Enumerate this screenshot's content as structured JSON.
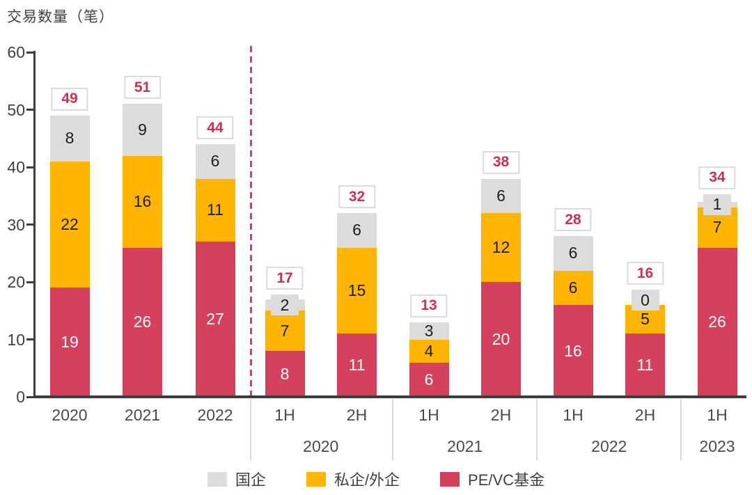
{
  "title": "交易数量（笔）",
  "colors": {
    "axis": "#3d3d3d",
    "tick_text": "#404040",
    "category_text": "#4a4a4a",
    "separator": "#d9d9d9",
    "dashed_divider": "#d5415d",
    "total_text": "#ce2f51",
    "total_border": "#dbdbdb",
    "total_bg": "#ffffff"
  },
  "legend": [
    {
      "label": "国企",
      "color": "#dcdcdc"
    },
    {
      "label": "私企/外企",
      "color": "#ffb400"
    },
    {
      "label": "PE/VC基金",
      "color": "#d5415d"
    }
  ],
  "chart_data": {
    "type": "bar",
    "stacked": true,
    "title": "交易数量（笔）",
    "ylabel": "交易数量（笔）",
    "xlabel": "",
    "ylim": [
      0,
      60
    ],
    "yticks": [
      "0",
      "10",
      "20",
      "30",
      "40",
      "50",
      "60"
    ],
    "ytick_values": [
      0,
      10,
      20,
      30,
      40,
      50,
      60
    ],
    "grid": false,
    "legend_position": "bottom",
    "categories": [
      "2020",
      "2021",
      "2022",
      "1H",
      "2H",
      "1H",
      "2H",
      "1H",
      "2H",
      "1H"
    ],
    "groups": [
      {
        "label": "2020",
        "first": 3,
        "last": 4
      },
      {
        "label": "2021",
        "first": 5,
        "last": 6
      },
      {
        "label": "2022",
        "first": 7,
        "last": 8
      },
      {
        "label": "2023",
        "first": 9,
        "last": 9
      }
    ],
    "divider_after_index": 2,
    "series": [
      {
        "name": "PE/VC基金",
        "color": "#d5415d",
        "label_color": "#ffffff",
        "values": [
          19,
          26,
          27,
          8,
          11,
          6,
          20,
          16,
          11,
          26
        ]
      },
      {
        "name": "私企/外企",
        "color": "#ffb400",
        "label_color": "#1c1c1c",
        "values": [
          22,
          16,
          11,
          7,
          15,
          4,
          12,
          6,
          5,
          7
        ]
      },
      {
        "name": "国企",
        "color": "#dcdcdc",
        "label_color": "#1c1c1c",
        "values": [
          8,
          9,
          6,
          2,
          6,
          3,
          6,
          6,
          0,
          1
        ]
      }
    ],
    "totals": [
      49,
      51,
      44,
      17,
      32,
      13,
      38,
      28,
      16,
      34
    ]
  }
}
